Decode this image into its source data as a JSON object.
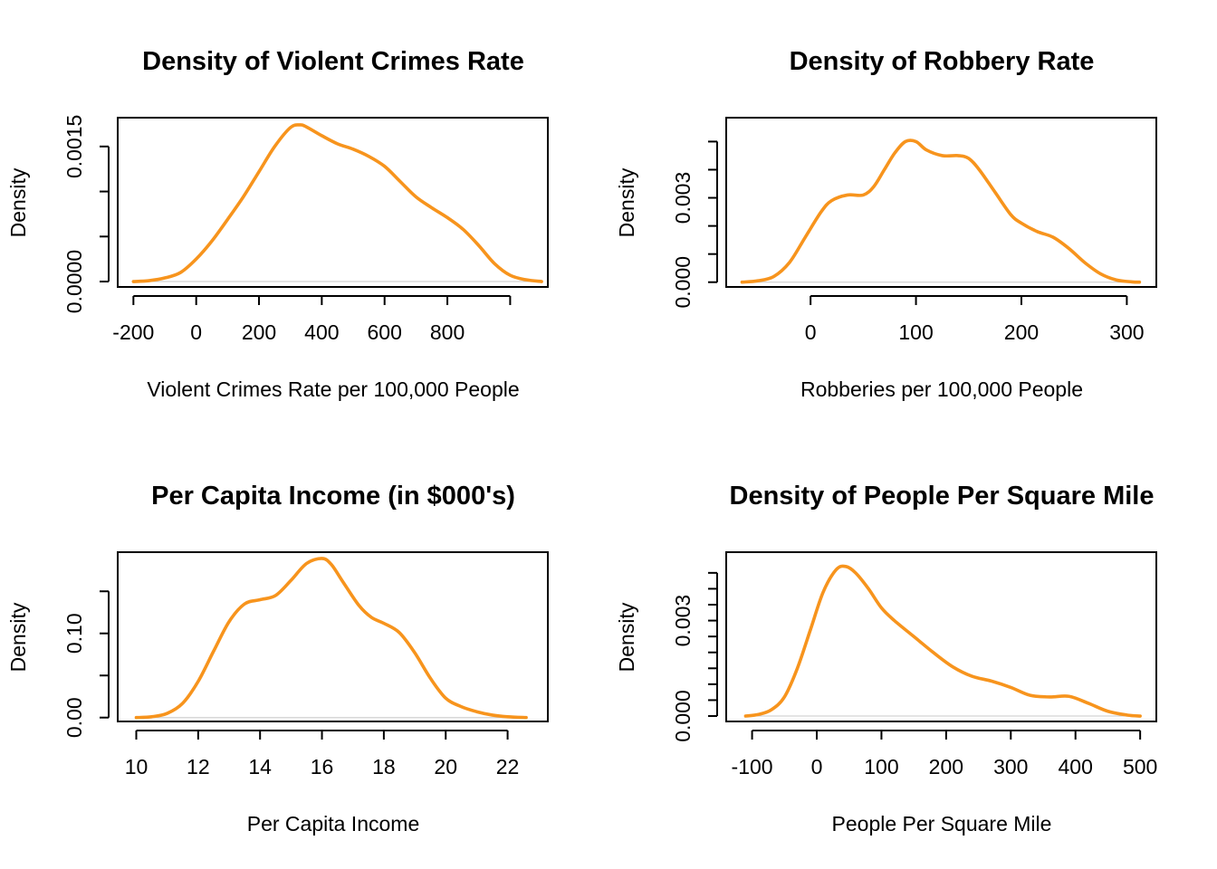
{
  "colors": {
    "curve": "#F7941D",
    "frame": "#000000",
    "baseline": "#C8C8C8"
  },
  "chart_data": [
    {
      "type": "line",
      "title": "Density of Violent Crimes Rate",
      "xlabel": "Violent Crimes Rate per 100,000 People",
      "ylabel": "Density",
      "xlim": [
        -250,
        1120
      ],
      "ylim": [
        -6e-05,
        0.00182
      ],
      "x_ticks": [
        -200,
        0,
        200,
        400,
        600,
        800,
        1000
      ],
      "x_tick_labels": [
        "-200",
        "0",
        "200",
        "400",
        "600",
        "800",
        ""
      ],
      "y_ticks": [
        0,
        0.0005,
        0.001,
        0.0015
      ],
      "y_tick_labels": [
        "0.0000",
        "",
        "",
        "0.0015"
      ],
      "grid": false,
      "series": [
        {
          "x": [
            -200,
            -150,
            -100,
            -50,
            0,
            50,
            100,
            150,
            200,
            250,
            300,
            330,
            350,
            400,
            450,
            500,
            550,
            600,
            650,
            700,
            750,
            800,
            850,
            900,
            950,
            1000,
            1050,
            1100
          ],
          "y": [
            0,
            1e-05,
            4e-05,
            0.0001,
            0.00025,
            0.00045,
            0.00069,
            0.00094,
            0.00122,
            0.0015,
            0.00171,
            0.00174,
            0.00172,
            0.00162,
            0.00153,
            0.00147,
            0.00139,
            0.00128,
            0.00111,
            0.00094,
            0.00082,
            0.00071,
            0.00058,
            0.0004,
            0.0002,
            7e-05,
            2e-05,
            0.0
          ]
        }
      ]
    },
    {
      "type": "line",
      "title": "Density of Robbery Rate",
      "xlabel": "Robberies per 100,000 People",
      "ylabel": "Density",
      "xlim": [
        -80,
        328
      ],
      "ylim": [
        -0.00017,
        0.00585
      ],
      "x_ticks": [
        0,
        100,
        200,
        300
      ],
      "x_tick_labels": [
        "0",
        "100",
        "200",
        "300"
      ],
      "y_ticks": [
        0,
        0.001,
        0.002,
        0.003,
        0.004,
        0.005
      ],
      "y_tick_labels": [
        "0.000",
        "",
        "",
        "0.003",
        "",
        ""
      ],
      "grid": false,
      "series": [
        {
          "x": [
            -65,
            -50,
            -35,
            -20,
            -5,
            10,
            20,
            35,
            50,
            60,
            70,
            80,
            90,
            100,
            110,
            125,
            140,
            150,
            160,
            175,
            190,
            200,
            215,
            230,
            245,
            260,
            275,
            290,
            305,
            312
          ],
          "y": [
            0.0,
            5e-05,
            0.0002,
            0.0007,
            0.0016,
            0.0025,
            0.0029,
            0.0031,
            0.0031,
            0.0034,
            0.004,
            0.0046,
            0.005,
            0.005,
            0.0047,
            0.0045,
            0.0045,
            0.0044,
            0.004,
            0.0032,
            0.0024,
            0.0021,
            0.0018,
            0.0016,
            0.0012,
            0.0007,
            0.0003,
            8e-05,
            1e-05,
            0.0
          ]
        }
      ]
    },
    {
      "type": "line",
      "title": "Per Capita Income (in $000's)",
      "xlabel": "Per Capita Income",
      "ylabel": "Density",
      "xlim": [
        9.4,
        23.3
      ],
      "ylim": [
        -0.0046,
        0.1965
      ],
      "x_ticks": [
        10,
        12,
        14,
        16,
        18,
        20,
        22
      ],
      "x_tick_labels": [
        "10",
        "12",
        "14",
        "16",
        "18",
        "20",
        "22"
      ],
      "y_ticks": [
        0,
        0.05,
        0.1,
        0.15
      ],
      "y_tick_labels": [
        "0.00",
        "",
        "0.10",
        ""
      ],
      "grid": false,
      "series": [
        {
          "x": [
            10.0,
            10.5,
            11.0,
            11.5,
            12.0,
            12.5,
            13.0,
            13.5,
            14.0,
            14.5,
            15.0,
            15.5,
            16.0,
            16.3,
            16.7,
            17.2,
            17.6,
            18.0,
            18.5,
            19.0,
            19.5,
            20.0,
            20.5,
            21.0,
            21.5,
            22.0,
            22.6
          ],
          "y": [
            0.0,
            0.001,
            0.005,
            0.017,
            0.043,
            0.079,
            0.114,
            0.135,
            0.14,
            0.145,
            0.163,
            0.183,
            0.189,
            0.182,
            0.16,
            0.133,
            0.119,
            0.112,
            0.101,
            0.077,
            0.047,
            0.023,
            0.013,
            0.007,
            0.003,
            0.001,
            0.0
          ]
        }
      ]
    },
    {
      "type": "line",
      "title": "Density of People Per Square Mile",
      "xlabel": "People Per Square Mile",
      "ylabel": "Density",
      "xlim": [
        -140,
        525
      ],
      "ylim": [
        -0.00017,
        0.00515
      ],
      "x_ticks": [
        -100,
        0,
        100,
        200,
        300,
        400,
        500
      ],
      "x_tick_labels": [
        "-100",
        "0",
        "100",
        "200",
        "300",
        "400",
        "500"
      ],
      "y_ticks": [
        0,
        0.0005,
        0.001,
        0.0015,
        0.002,
        0.0025,
        0.003,
        0.0035,
        0.004,
        0.0045
      ],
      "y_tick_labels": [
        "0.000",
        "",
        "",
        "",
        "",
        "",
        "0.003",
        "",
        "",
        ""
      ],
      "grid": false,
      "series": [
        {
          "x": [
            -110,
            -90,
            -70,
            -50,
            -30,
            -10,
            10,
            30,
            45,
            60,
            80,
            100,
            120,
            150,
            180,
            210,
            240,
            270,
            300,
            330,
            360,
            390,
            420,
            450,
            480,
            500
          ],
          "y": [
            0.0,
            5e-05,
            0.0002,
            0.0006,
            0.0015,
            0.0027,
            0.0039,
            0.0046,
            0.0047,
            0.0045,
            0.004,
            0.0034,
            0.003,
            0.0025,
            0.002,
            0.00155,
            0.00125,
            0.0011,
            0.0009,
            0.00065,
            0.0006,
            0.00062,
            0.0004,
            0.00015,
            3e-05,
            0.0
          ]
        }
      ]
    }
  ]
}
